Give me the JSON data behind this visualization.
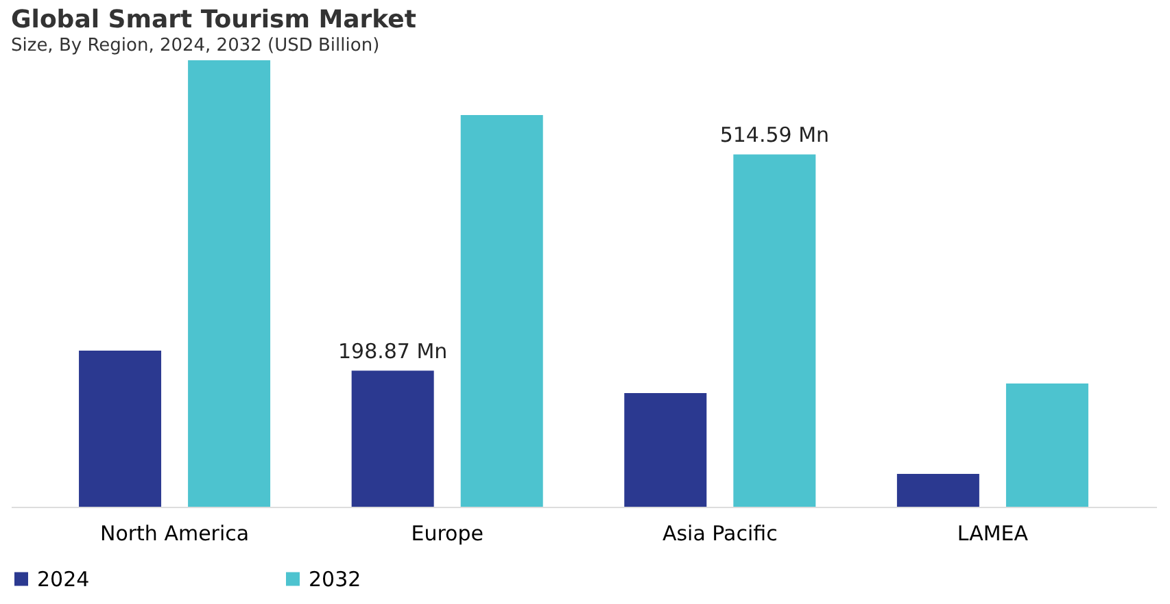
{
  "chart_data": {
    "type": "bar",
    "title": "Global Smart Tourism Market",
    "subtitle": "Size, By Region, 2024, 2032 (USD Billion)",
    "categories": [
      "North America",
      "Europe",
      "Asia Pacific",
      "LAMEA"
    ],
    "series": [
      {
        "name": "2024",
        "color": "#2b3990",
        "values": [
          228,
          198.87,
          166,
          48
        ],
        "value_labels": [
          null,
          "198.87 Mn",
          null,
          null
        ]
      },
      {
        "name": "2032",
        "color": "#4dc3cf",
        "values": [
          652,
          572,
          514.59,
          180
        ],
        "value_labels": [
          null,
          null,
          "514.59 Mn",
          null
        ]
      }
    ],
    "legend": "bottom",
    "grid": false
  }
}
